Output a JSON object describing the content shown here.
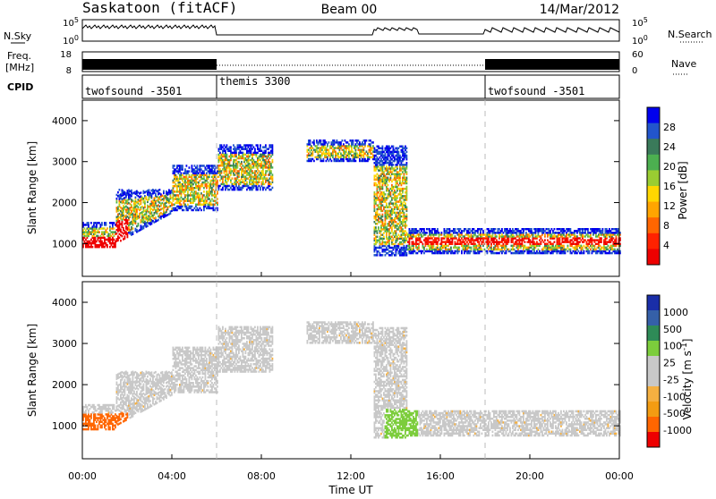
{
  "header": {
    "station": "Saskatoon (fitACF)",
    "beam": "Beam 00",
    "date": "14/Mar/2012"
  },
  "noise_panel": {
    "left_label": "N.Sky",
    "right_label": "N.Search",
    "left_ticks": [
      "10^5",
      "10^0"
    ],
    "right_ticks": [
      "10^5",
      "10^0"
    ]
  },
  "freq_panel": {
    "left_label_1": "Freq.",
    "left_label_2": "[MHz]",
    "right_label": "Nave",
    "left_ticks": [
      "18",
      "8"
    ],
    "right_ticks": [
      "60",
      "0"
    ]
  },
  "cpid": {
    "label": "CPID",
    "segments": [
      {
        "name": "twofsound -3501",
        "start_h": 0,
        "end_h": 6
      },
      {
        "name": "themis 3300",
        "start_h": 6,
        "end_h": 18
      },
      {
        "name": "twofsound -3501",
        "start_h": 18,
        "end_h": 24
      }
    ]
  },
  "chart_data": [
    {
      "type": "heatmap",
      "title": "Power",
      "ylabel": "Slant Range [km]",
      "ylim": [
        200,
        4500
      ],
      "yticks": [
        1000,
        2000,
        3000,
        4000
      ],
      "xlim": [
        0,
        24
      ],
      "colorbar_label": "Power [dB]",
      "colorbar_ticks": [
        "28",
        "24",
        "20",
        "16",
        "12",
        "8",
        "4"
      ],
      "colorbar_colors": [
        "#0000ee",
        "#2255cc",
        "#3a7a5a",
        "#4caf50",
        "#9acd32",
        "#ffd700",
        "#ffa500",
        "#ff6600",
        "#ff2200",
        "#ee0000"
      ]
    },
    {
      "type": "heatmap",
      "title": "Velocity",
      "ylabel": "Slant Range [km]",
      "ylim": [
        200,
        4500
      ],
      "yticks": [
        1000,
        2000,
        3000,
        4000
      ],
      "xlim": [
        0,
        24
      ],
      "colorbar_label": "Velocity [m s^-1]",
      "colorbar_ticks": [
        "1000",
        "500",
        "100",
        "25",
        "-25",
        "-100",
        "-500",
        "-1000"
      ],
      "colorbar_colors": [
        "#1a2ea8",
        "#3560a8",
        "#2e8b57",
        "#7ccd3c",
        "#c8c8c8",
        "#c8c8c8",
        "#f5b041",
        "#f39c12",
        "#ff6600",
        "#ee0000"
      ]
    }
  ],
  "x_axis": {
    "label": "Time UT",
    "ticks": [
      "00:00",
      "04:00",
      "08:00",
      "12:00",
      "16:00",
      "20:00",
      "00:00"
    ]
  }
}
